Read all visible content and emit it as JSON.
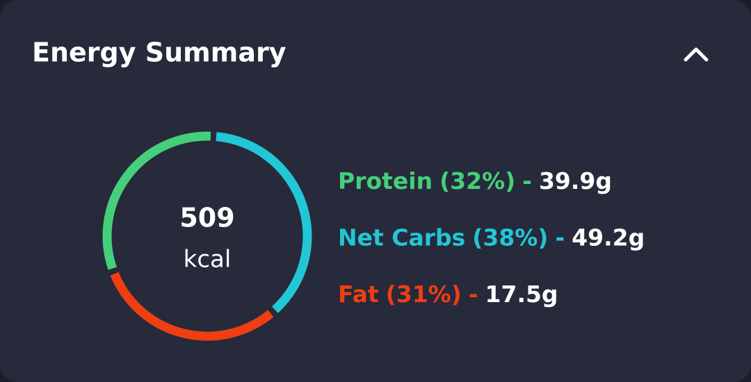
{
  "header": {
    "title": "Energy Summary"
  },
  "chart_data": {
    "type": "donut",
    "center_value": 509,
    "center_unit": "kcal",
    "categories": [
      "Protein",
      "Net Carbs",
      "Fat"
    ],
    "values": [
      32,
      38,
      31
    ],
    "value_labels": [
      "(32%)",
      "(38%)",
      "(31%)"
    ],
    "colors": [
      "#45cf7a",
      "#22c6d6",
      "#ee3e12"
    ],
    "amounts": [
      "39.9g",
      "49.2g",
      "17.5g"
    ],
    "separator": "-"
  }
}
